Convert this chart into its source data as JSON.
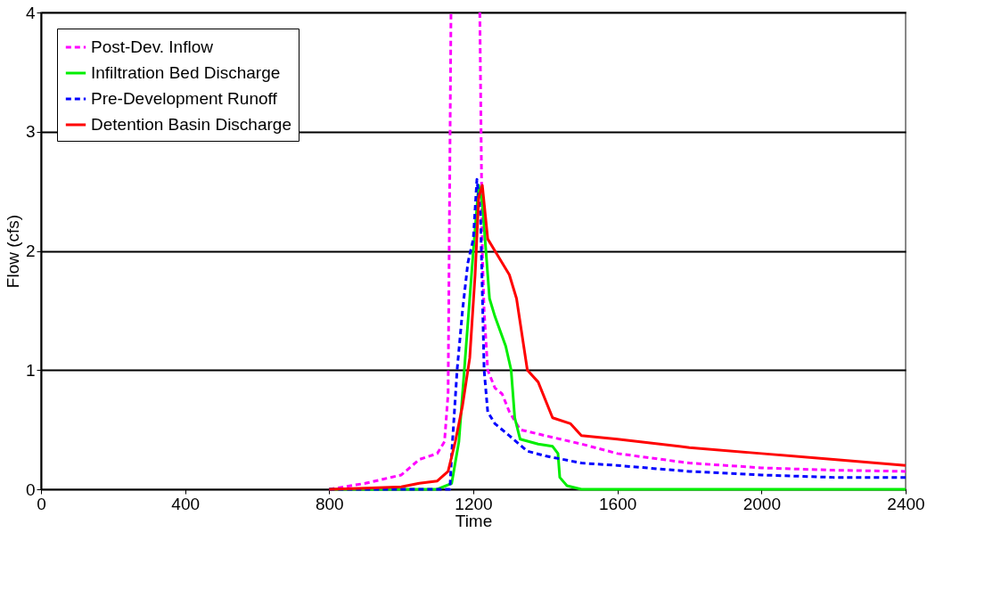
{
  "chart_data": {
    "type": "line",
    "xlabel": "Time",
    "ylabel": "Flow (cfs)",
    "xlim": [
      0,
      2400
    ],
    "xticks": [
      0,
      400,
      800,
      1200,
      1600,
      2000,
      2400
    ],
    "ylim": [
      0,
      4
    ],
    "yticks": [
      0,
      1,
      2,
      3,
      4
    ],
    "grid": "y",
    "legend": "top left",
    "series": [
      {
        "name": "Post-Dev. Inflow",
        "color": "#ff00ff",
        "line_style": "dashed",
        "x": [
          800,
          900,
          1000,
          1050,
          1100,
          1120,
          1130,
          1138,
          1178,
          1218,
          1225,
          1230,
          1240,
          1260,
          1280,
          1300,
          1330,
          1400,
          1500,
          1600,
          1800,
          2000,
          2200,
          2400
        ],
        "values": [
          0,
          0.05,
          0.12,
          0.25,
          0.3,
          0.4,
          0.8,
          4,
          null,
          4,
          2.0,
          1.5,
          1.0,
          0.85,
          0.8,
          0.65,
          0.5,
          0.45,
          0.38,
          0.3,
          0.22,
          0.18,
          0.16,
          0.15
        ]
      },
      {
        "name": "Infiltration Bed Discharge",
        "color": "#00ee00",
        "line_style": "solid",
        "x": [
          800,
          1100,
          1140,
          1160,
          1180,
          1200,
          1215,
          1225,
          1235,
          1245,
          1260,
          1290,
          1305,
          1315,
          1330,
          1380,
          1420,
          1435,
          1440,
          1460,
          1500,
          2400
        ],
        "values": [
          0,
          0,
          0.05,
          0.4,
          1.2,
          2.0,
          2.55,
          2.4,
          2.0,
          1.6,
          1.45,
          1.2,
          1.0,
          0.6,
          0.42,
          0.38,
          0.36,
          0.3,
          0.1,
          0.03,
          0,
          0
        ]
      },
      {
        "name": "Pre-Development Runoff",
        "color": "#0000ff",
        "line_style": "dashed",
        "x": [
          800,
          1135,
          1140,
          1155,
          1170,
          1185,
          1200,
          1210,
          1220,
          1230,
          1240,
          1260,
          1300,
          1350,
          1400,
          1500,
          1600,
          1800,
          2000,
          2200,
          2400
        ],
        "values": [
          0,
          0,
          0.3,
          1.0,
          1.5,
          1.9,
          2.1,
          2.6,
          2.3,
          1.0,
          0.65,
          0.55,
          0.45,
          0.32,
          0.28,
          0.22,
          0.2,
          0.15,
          0.12,
          0.1,
          0.1
        ]
      },
      {
        "name": "Detention Basin Discharge",
        "color": "#ff0000",
        "line_style": "solid",
        "x": [
          800,
          900,
          1000,
          1050,
          1100,
          1130,
          1150,
          1170,
          1190,
          1205,
          1215,
          1225,
          1240,
          1260,
          1300,
          1320,
          1340,
          1350,
          1380,
          1420,
          1470,
          1500,
          1600,
          1800,
          2000,
          2200,
          2400
        ],
        "values": [
          0,
          0.01,
          0.02,
          0.05,
          0.07,
          0.15,
          0.4,
          0.7,
          1.1,
          1.8,
          2.45,
          2.55,
          2.1,
          2.0,
          1.8,
          1.6,
          1.2,
          1.0,
          0.9,
          0.6,
          0.55,
          0.45,
          0.42,
          0.35,
          0.3,
          0.25,
          0.2
        ]
      }
    ]
  }
}
